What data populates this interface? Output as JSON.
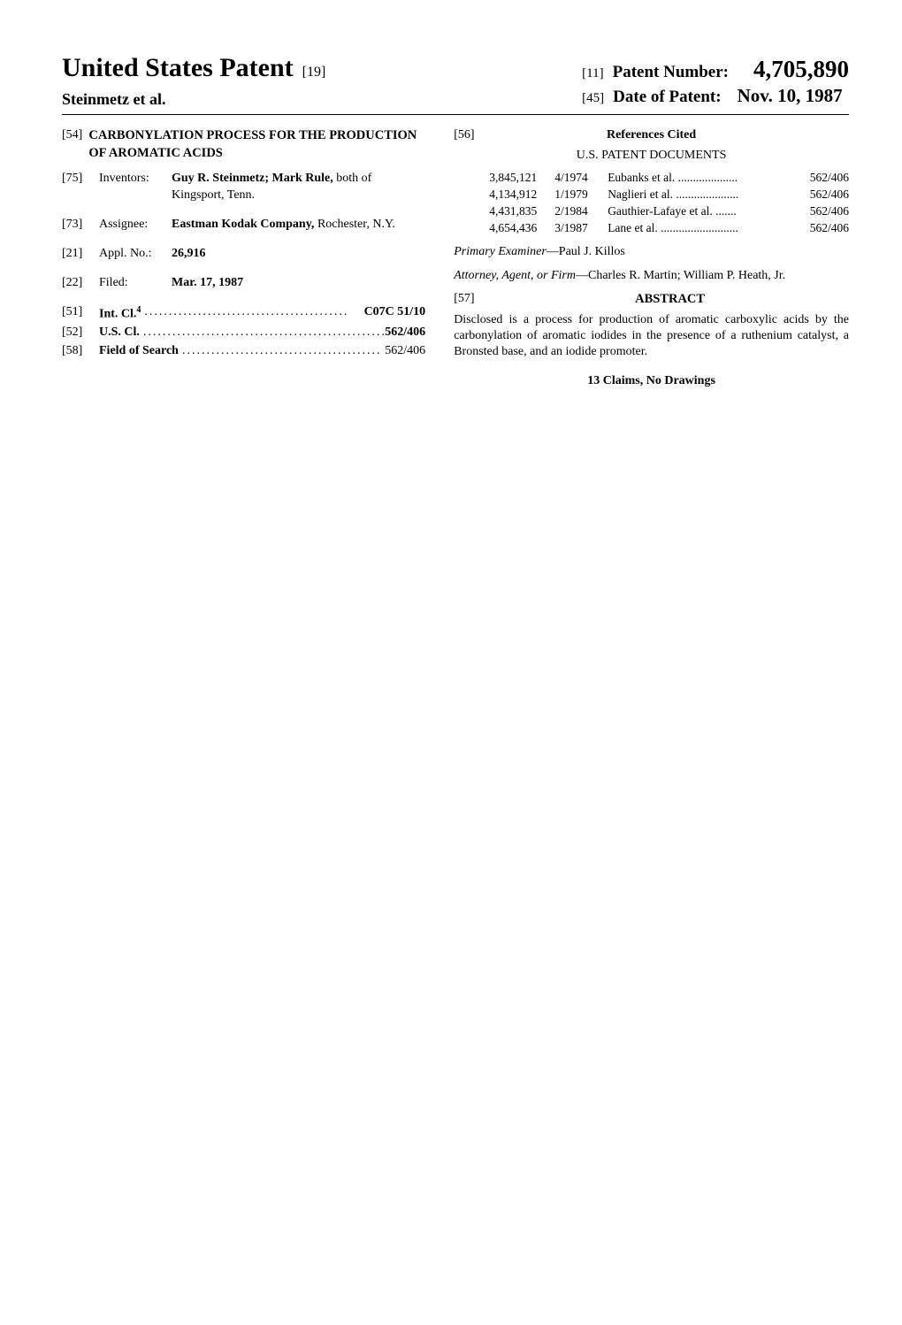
{
  "header": {
    "main_title": "United States Patent",
    "bracket_19": "[19]",
    "authors": "Steinmetz et al.",
    "patent_number_bracket": "[11]",
    "patent_number_label": "Patent Number:",
    "patent_number_value": "4,705,890",
    "date_bracket": "[45]",
    "date_label": "Date of Patent:",
    "date_value": "Nov. 10, 1987"
  },
  "left": {
    "title_bracket": "[54]",
    "title_text": "CARBONYLATION PROCESS FOR THE PRODUCTION OF AROMATIC ACIDS",
    "inventors_bracket": "[75]",
    "inventors_label": "Inventors:",
    "inventors_value_bold": "Guy R. Steinmetz; Mark Rule,",
    "inventors_value_rest": " both of Kingsport, Tenn.",
    "assignee_bracket": "[73]",
    "assignee_label": "Assignee:",
    "assignee_value_bold": "Eastman Kodak Company,",
    "assignee_value_rest": " Rochester, N.Y.",
    "appl_bracket": "[21]",
    "appl_label": "Appl. No.:",
    "appl_value": "26,916",
    "filed_bracket": "[22]",
    "filed_label": "Filed:",
    "filed_value": "Mar. 17, 1987",
    "intcl_bracket": "[51]",
    "intcl_label": "Int. Cl.",
    "intcl_sup": "4",
    "intcl_dots": "..........................................",
    "intcl_value": "C07C 51/10",
    "uscl_bracket": "[52]",
    "uscl_label": "U.S. Cl.",
    "uscl_dots": "....................................................",
    "uscl_value": "562/406",
    "field_bracket": "[58]",
    "field_label": "Field of Search",
    "field_dots": ".........................................",
    "field_value": "562/406"
  },
  "right": {
    "refs_bracket": "[56]",
    "refs_title": "References Cited",
    "us_docs_title": "U.S. PATENT DOCUMENTS",
    "refs": [
      {
        "num": "3,845,121",
        "date": "4/1974",
        "auth": "Eubanks et al. ....................",
        "cls": "562/406"
      },
      {
        "num": "4,134,912",
        "date": "1/1979",
        "auth": "Naglieri et al. .....................",
        "cls": "562/406"
      },
      {
        "num": "4,431,835",
        "date": "2/1984",
        "auth": "Gauthier-Lafaye et al. .......",
        "cls": "562/406"
      },
      {
        "num": "4,654,436",
        "date": "3/1987",
        "auth": "Lane et al. ..........................",
        "cls": "562/406"
      }
    ],
    "examiner_label": "Primary Examiner",
    "examiner_value": "—Paul J. Killos",
    "attorney_label": "Attorney, Agent, or Firm",
    "attorney_value": "—Charles R. Martin; William P. Heath, Jr.",
    "abstract_bracket": "[57]",
    "abstract_title": "ABSTRACT",
    "abstract_body": "Disclosed is a process for production of aromatic carboxylic acids by the carbonylation of aromatic iodides in the presence of a ruthenium catalyst, a Bronsted base, and an iodide promoter.",
    "claims_line": "13 Claims, No Drawings"
  },
  "style": {
    "page_bg": "#ffffff",
    "text_color": "#000000",
    "rule_color": "#000000",
    "font_family": "Times New Roman",
    "main_title_size": 30,
    "patent_number_size": 27,
    "body_size": 14
  }
}
